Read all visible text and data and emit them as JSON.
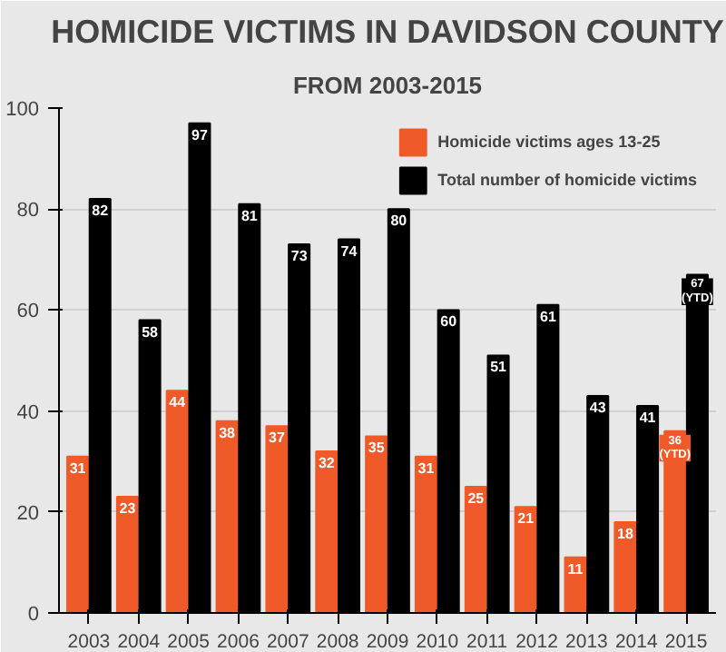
{
  "chart_data": {
    "type": "bar",
    "title": "HOMICIDE VICTIMS IN DAVIDSON COUNTY",
    "subtitle": "FROM 2003-2015",
    "categories": [
      "2003",
      "2004",
      "2005",
      "2006",
      "2007",
      "2008",
      "2009",
      "2010",
      "2011",
      "2012",
      "2013",
      "2014",
      "2015"
    ],
    "series": [
      {
        "name": "Homicide victims ages 13-25",
        "color": "#f05a28",
        "values": [
          31,
          23,
          44,
          38,
          37,
          32,
          35,
          31,
          25,
          21,
          11,
          18,
          36
        ],
        "value_labels": [
          "31",
          "23",
          "44",
          "38",
          "37",
          "32",
          "35",
          "31",
          "25",
          "21",
          "11",
          "18",
          "36\n(YTD)"
        ]
      },
      {
        "name": "Total number of homicide victims",
        "color": "#000000",
        "values": [
          82,
          58,
          97,
          81,
          73,
          74,
          80,
          60,
          51,
          61,
          43,
          41,
          67
        ],
        "value_labels": [
          "82",
          "58",
          "97",
          "81",
          "73",
          "74",
          "80",
          "60",
          "51",
          "61",
          "43",
          "41",
          "67\n(YTD)"
        ]
      }
    ],
    "ylim": [
      0,
      100
    ],
    "yticks": [
      0,
      20,
      40,
      60,
      80,
      100
    ],
    "grid": "y",
    "legend": "top right"
  }
}
